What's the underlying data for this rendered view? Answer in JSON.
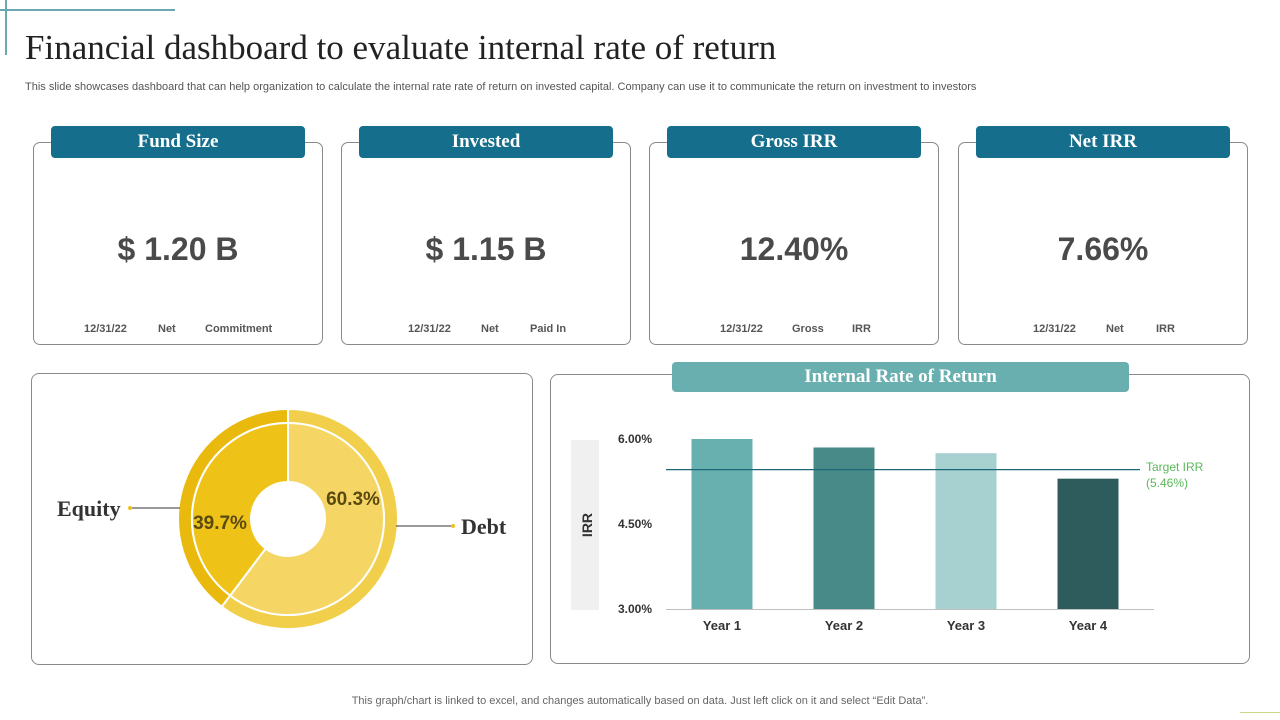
{
  "title": "Financial dashboard to evaluate internal rate of return",
  "subtitle": "This slide showcases dashboard that can help organization to calculate the internal rate rate of return on invested capital. Company can use it to  communicate the return on investment to investors",
  "cards": [
    {
      "heading": "Fund Size",
      "value": "$ 1.20 B",
      "footer": [
        "12/31/22",
        "Net",
        "Commitment"
      ]
    },
    {
      "heading": "Invested",
      "value": "$ 1.15 B",
      "footer": [
        "12/31/22",
        "Net",
        "Paid In"
      ]
    },
    {
      "heading": "Gross IRR",
      "value": "12.40%",
      "footer": [
        "12/31/22",
        "Gross",
        "IRR"
      ]
    },
    {
      "heading": "Net IRR",
      "value": "7.66%",
      "footer": [
        "12/31/22",
        "Net",
        "IRR"
      ]
    }
  ],
  "irr_panel_title": "Internal  Rate of Return",
  "footnote": "This graph/chart is linked to excel,  and changes automatically based on data. Just left click on it and select “Edit Data”.",
  "chart_data": [
    {
      "type": "pie",
      "variant": "donut",
      "slices": [
        {
          "label": "Equity",
          "value": 39.7,
          "value_label": "39.7%",
          "color": "#efc218"
        },
        {
          "label": "Debt",
          "value": 60.3,
          "value_label": "60.3%",
          "color": "#f5d665"
        }
      ]
    },
    {
      "type": "bar",
      "categories": [
        "Year 1",
        "Year 2",
        "Year 3",
        "Year 4"
      ],
      "series": [
        {
          "values": [
            6.0,
            5.85,
            5.75,
            5.3
          ]
        }
      ],
      "bar_colors": [
        "#67b0af",
        "#478a88",
        "#a7d0d0",
        "#2e5b5b"
      ],
      "ylabel": "IRR",
      "ylim": [
        3.0,
        6.0
      ],
      "yticks": [
        "3.00%",
        "4.50%",
        "6.00%"
      ],
      "target": {
        "value": 5.46,
        "label": "Target IRR",
        "value_label": "(5.46%)",
        "color": "#5ab85a"
      },
      "grid": false
    }
  ]
}
